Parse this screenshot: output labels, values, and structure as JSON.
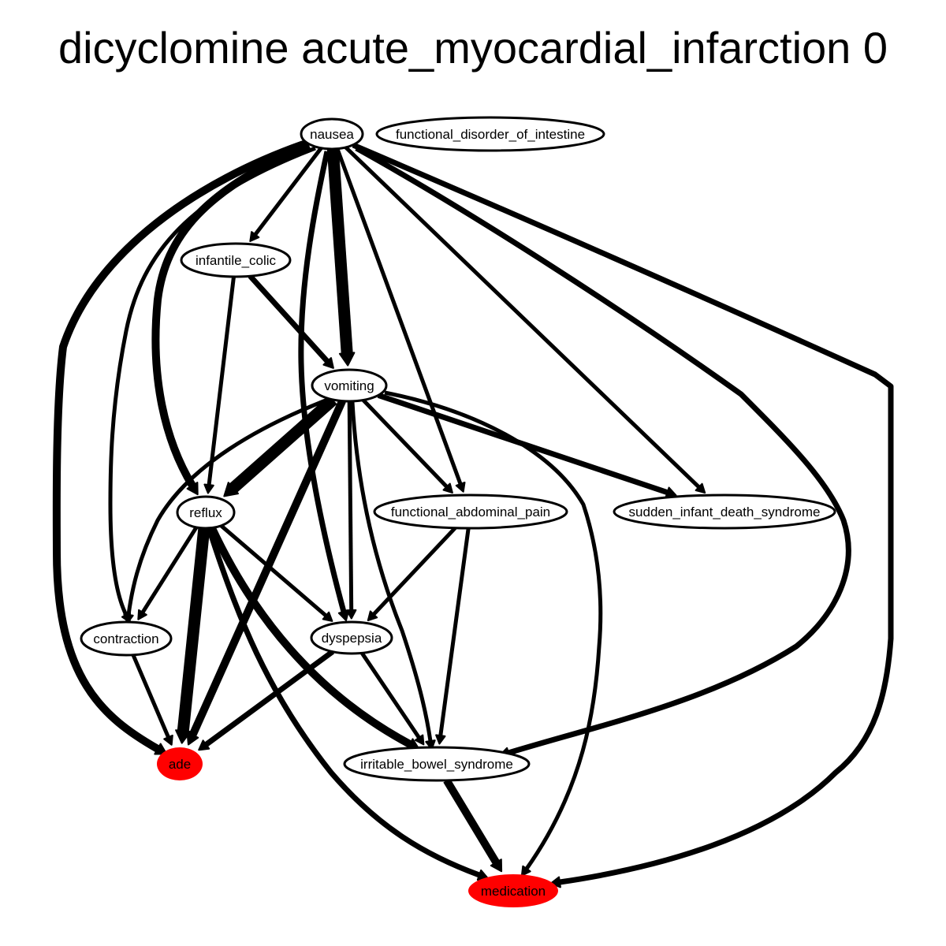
{
  "title": "dicyclomine acute_myocardial_infarction 0",
  "colors": {
    "highlight_fill": "#ff0000",
    "node_fill": "#ffffff",
    "stroke": "#000000"
  },
  "nodes": [
    {
      "id": "nausea",
      "label": "nausea",
      "highlight": false
    },
    {
      "id": "functional_disorder_of_intestine",
      "label": "functional_disorder_of_intestine",
      "highlight": false
    },
    {
      "id": "infantile_colic",
      "label": "infantile_colic",
      "highlight": false
    },
    {
      "id": "vomiting",
      "label": "vomiting",
      "highlight": false
    },
    {
      "id": "reflux",
      "label": "reflux",
      "highlight": false
    },
    {
      "id": "functional_abdominal_pain",
      "label": "functional_abdominal_pain",
      "highlight": false
    },
    {
      "id": "sudden_infant_death_syndrome",
      "label": "sudden_infant_death_syndrome",
      "highlight": false
    },
    {
      "id": "contraction",
      "label": "contraction",
      "highlight": false
    },
    {
      "id": "dyspepsia",
      "label": "dyspepsia",
      "highlight": false
    },
    {
      "id": "ade",
      "label": "ade",
      "highlight": true
    },
    {
      "id": "irritable_bowel_syndrome",
      "label": "irritable_bowel_syndrome",
      "highlight": false
    },
    {
      "id": "medication",
      "label": "medication",
      "highlight": true
    }
  ],
  "edges": [
    {
      "from": "nausea",
      "to": "ade",
      "weight": "heavy"
    },
    {
      "from": "nausea",
      "to": "contraction",
      "weight": "light"
    },
    {
      "from": "nausea",
      "to": "reflux",
      "weight": "heavy"
    },
    {
      "from": "nausea",
      "to": "infantile_colic",
      "weight": "light"
    },
    {
      "from": "nausea",
      "to": "dyspepsia",
      "weight": "medium"
    },
    {
      "from": "nausea",
      "to": "vomiting",
      "weight": "max"
    },
    {
      "from": "nausea",
      "to": "functional_abdominal_pain",
      "weight": "light"
    },
    {
      "from": "nausea",
      "to": "sudden_infant_death_syndrome",
      "weight": "light"
    },
    {
      "from": "nausea",
      "to": "irritable_bowel_syndrome",
      "weight": "medium"
    },
    {
      "from": "nausea",
      "to": "medication",
      "weight": "medium"
    },
    {
      "from": "infantile_colic",
      "to": "vomiting",
      "weight": "medium"
    },
    {
      "from": "infantile_colic",
      "to": "reflux",
      "weight": "light"
    },
    {
      "from": "vomiting",
      "to": "reflux",
      "weight": "max"
    },
    {
      "from": "vomiting",
      "to": "contraction",
      "weight": "light"
    },
    {
      "from": "vomiting",
      "to": "ade",
      "weight": "heavy"
    },
    {
      "from": "vomiting",
      "to": "dyspepsia",
      "weight": "light"
    },
    {
      "from": "vomiting",
      "to": "irritable_bowel_syndrome",
      "weight": "light"
    },
    {
      "from": "vomiting",
      "to": "functional_abdominal_pain",
      "weight": "light"
    },
    {
      "from": "vomiting",
      "to": "sudden_infant_death_syndrome",
      "weight": "medium"
    },
    {
      "from": "vomiting",
      "to": "medication",
      "weight": "light"
    },
    {
      "from": "reflux",
      "to": "contraction",
      "weight": "light"
    },
    {
      "from": "reflux",
      "to": "ade",
      "weight": "max"
    },
    {
      "from": "reflux",
      "to": "dyspepsia",
      "weight": "light"
    },
    {
      "from": "reflux",
      "to": "irritable_bowel_syndrome",
      "weight": "heavy"
    },
    {
      "from": "reflux",
      "to": "medication",
      "weight": "medium"
    },
    {
      "from": "functional_abdominal_pain",
      "to": "dyspepsia",
      "weight": "light"
    },
    {
      "from": "functional_abdominal_pain",
      "to": "irritable_bowel_syndrome",
      "weight": "light"
    },
    {
      "from": "contraction",
      "to": "ade",
      "weight": "light"
    },
    {
      "from": "dyspepsia",
      "to": "ade",
      "weight": "medium"
    },
    {
      "from": "dyspepsia",
      "to": "irritable_bowel_syndrome",
      "weight": "light"
    },
    {
      "from": "irritable_bowel_syndrome",
      "to": "medication",
      "weight": "heavy"
    }
  ]
}
